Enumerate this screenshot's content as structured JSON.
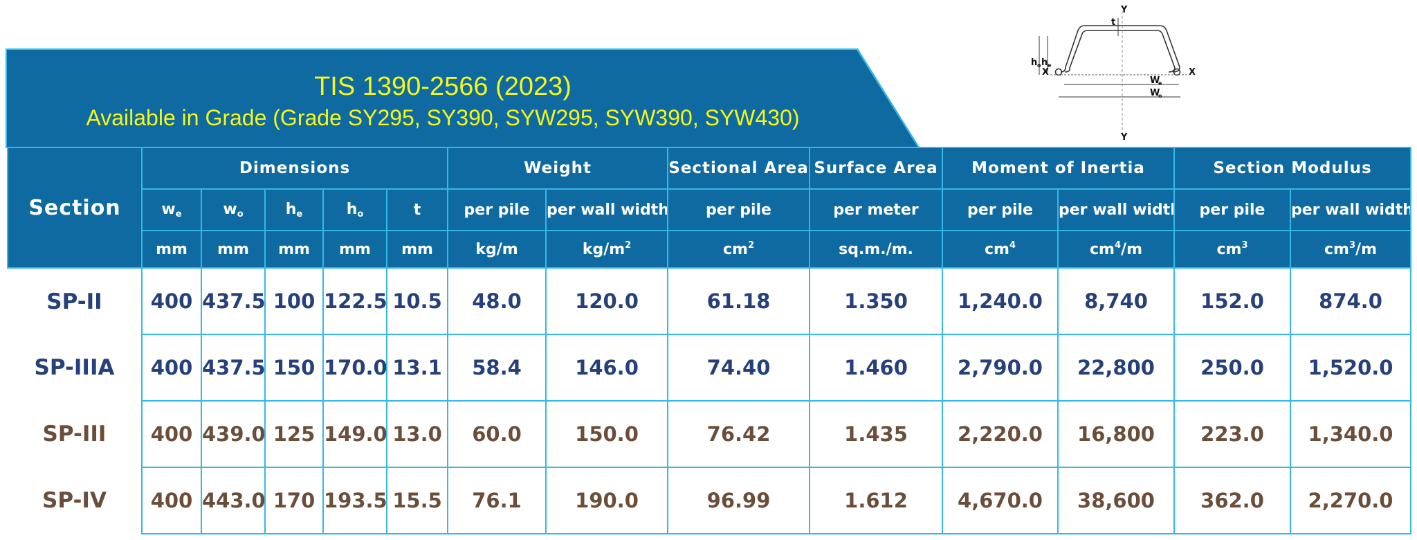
{
  "banner": {
    "title": "TIS 1390-2566 (2023)",
    "subtitle": "Available in Grade (Grade SY295, SY390, SYW295, SYW390, SYW430)"
  },
  "diagram": {
    "labels": {
      "y": "Y",
      "x": "X",
      "t": "t",
      "ho": "h",
      "he": "h",
      "we": "W",
      "wo": "W",
      "sub_o": "o",
      "sub_e": "e"
    }
  },
  "table": {
    "section_header": "Section",
    "groups": {
      "dimensions": "Dimensions",
      "weight": "Weight",
      "sectional_area": "Sectional Area",
      "surface_area": "Surface Area",
      "moment": "Moment of Inertia",
      "modulus": "Section Modulus"
    },
    "sub": {
      "we": "w",
      "we_sub": "e",
      "wo": "w",
      "wo_sub": "o",
      "he": "h",
      "he_sub": "e",
      "ho": "h",
      "ho_sub": "o",
      "t": "t",
      "per_pile": "per pile",
      "per_wall_width": "per wall width",
      "per_meter": "per meter"
    },
    "units": {
      "mm": "mm",
      "kgm": "kg/m",
      "kgm2": "kg/m",
      "cm2": "cm",
      "sqm": "sq.m./m.",
      "cm4": "cm",
      "cm4m_a": "cm",
      "cm4m_b": "/m",
      "cm3": "cm",
      "cm3m_a": "cm",
      "cm3m_b": "/m",
      "sup2": "2",
      "sup3": "3",
      "sup4": "4"
    },
    "rows": [
      {
        "section": "SP-II",
        "we": "400",
        "wo": "437.5",
        "he": "100",
        "ho": "122.5",
        "t": "10.5",
        "w_pile": "48.0",
        "w_wall": "120.0",
        "area": "61.18",
        "surface": "1.350",
        "mi_pile": "1,240.0",
        "mi_wall": "8,740",
        "sm_pile": "152.0",
        "sm_wall": "874.0"
      },
      {
        "section": "SP-IIIA",
        "we": "400",
        "wo": "437.5",
        "he": "150",
        "ho": "170.0",
        "t": "13.1",
        "w_pile": "58.4",
        "w_wall": "146.0",
        "area": "74.40",
        "surface": "1.460",
        "mi_pile": "2,790.0",
        "mi_wall": "22,800",
        "sm_pile": "250.0",
        "sm_wall": "1,520.0"
      },
      {
        "section": "SP-III",
        "we": "400",
        "wo": "439.0",
        "he": "125",
        "ho": "149.0",
        "t": "13.0",
        "w_pile": "60.0",
        "w_wall": "150.0",
        "area": "76.42",
        "surface": "1.435",
        "mi_pile": "2,220.0",
        "mi_wall": "16,800",
        "sm_pile": "223.0",
        "sm_wall": "1,340.0"
      },
      {
        "section": "SP-IV",
        "we": "400",
        "wo": "443.0",
        "he": "170",
        "ho": "193.5",
        "t": "15.5",
        "w_pile": "76.1",
        "w_wall": "190.0",
        "area": "96.99",
        "surface": "1.612",
        "mi_pile": "4,670.0",
        "mi_wall": "38,600",
        "sm_pile": "362.0",
        "sm_wall": "2,270.0"
      }
    ]
  },
  "colors": {
    "header_bg": "#0e6aa0",
    "border": "#34b8ea",
    "title": "#f5f71a",
    "row_blue": "#25407a",
    "row_brown": "#6b4e3a"
  }
}
